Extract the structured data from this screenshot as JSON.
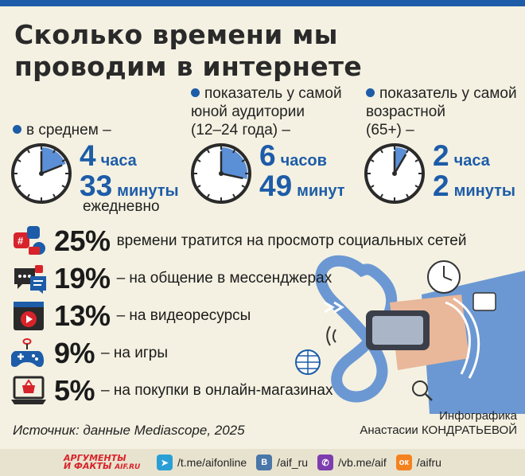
{
  "title": "Сколько времени мы проводим в интернете",
  "average": {
    "label": "в среднем –",
    "hours": "4",
    "hours_unit": "часа",
    "minutes": "33",
    "minutes_unit": "минуты",
    "suffix": "ежедневно",
    "fraction": 0.1896
  },
  "young": {
    "label_line1": "показатель у самой",
    "label_line2": "юной аудитории",
    "label_line3": "(12–24 года) –",
    "hours": "6",
    "hours_unit": "часов",
    "minutes": "49",
    "minutes_unit": "минут",
    "fraction": 0.284
  },
  "old": {
    "label_line1": "показатель у самой",
    "label_line2": "возрастной",
    "label_line3": "(65+) –",
    "hours": "2",
    "hours_unit": "часа",
    "minutes": "2",
    "minutes_unit": "минуты",
    "fraction": 0.0847
  },
  "activities": [
    {
      "icon": "social-media-icon",
      "pct": "25%",
      "text": "времени тратится на просмотр социальных сетей"
    },
    {
      "icon": "messenger-chat-icon",
      "pct": "19%",
      "text": "– на общение в мессенджерах"
    },
    {
      "icon": "video-play-icon",
      "pct": "13%",
      "text": "– на видеоресурсы"
    },
    {
      "icon": "gamepad-icon",
      "pct": "9%",
      "text": "– на игры"
    },
    {
      "icon": "shopping-cart-icon",
      "pct": "5%",
      "text": "– на покупки в онлайн-магазинах"
    }
  ],
  "source": "Источник: данные Mediascope, 2025",
  "credit_line1": "Инфографика",
  "credit_line2": "Анастасии КОНДРАТЬЕВОЙ",
  "footer": {
    "logo_line1": "АРГУМЕНТЫ",
    "logo_line2": "И ФАКТЫ",
    "logo_domain": "AIF.RU",
    "telegram": "/t.me/aifonline",
    "vk": "/aif_ru",
    "viber": "/vb.me/aif",
    "ok": "/aifru"
  },
  "colors": {
    "accent": "#1d5ca8",
    "clock_fill": "#5b8fd6",
    "background": "#f4f1e2"
  }
}
